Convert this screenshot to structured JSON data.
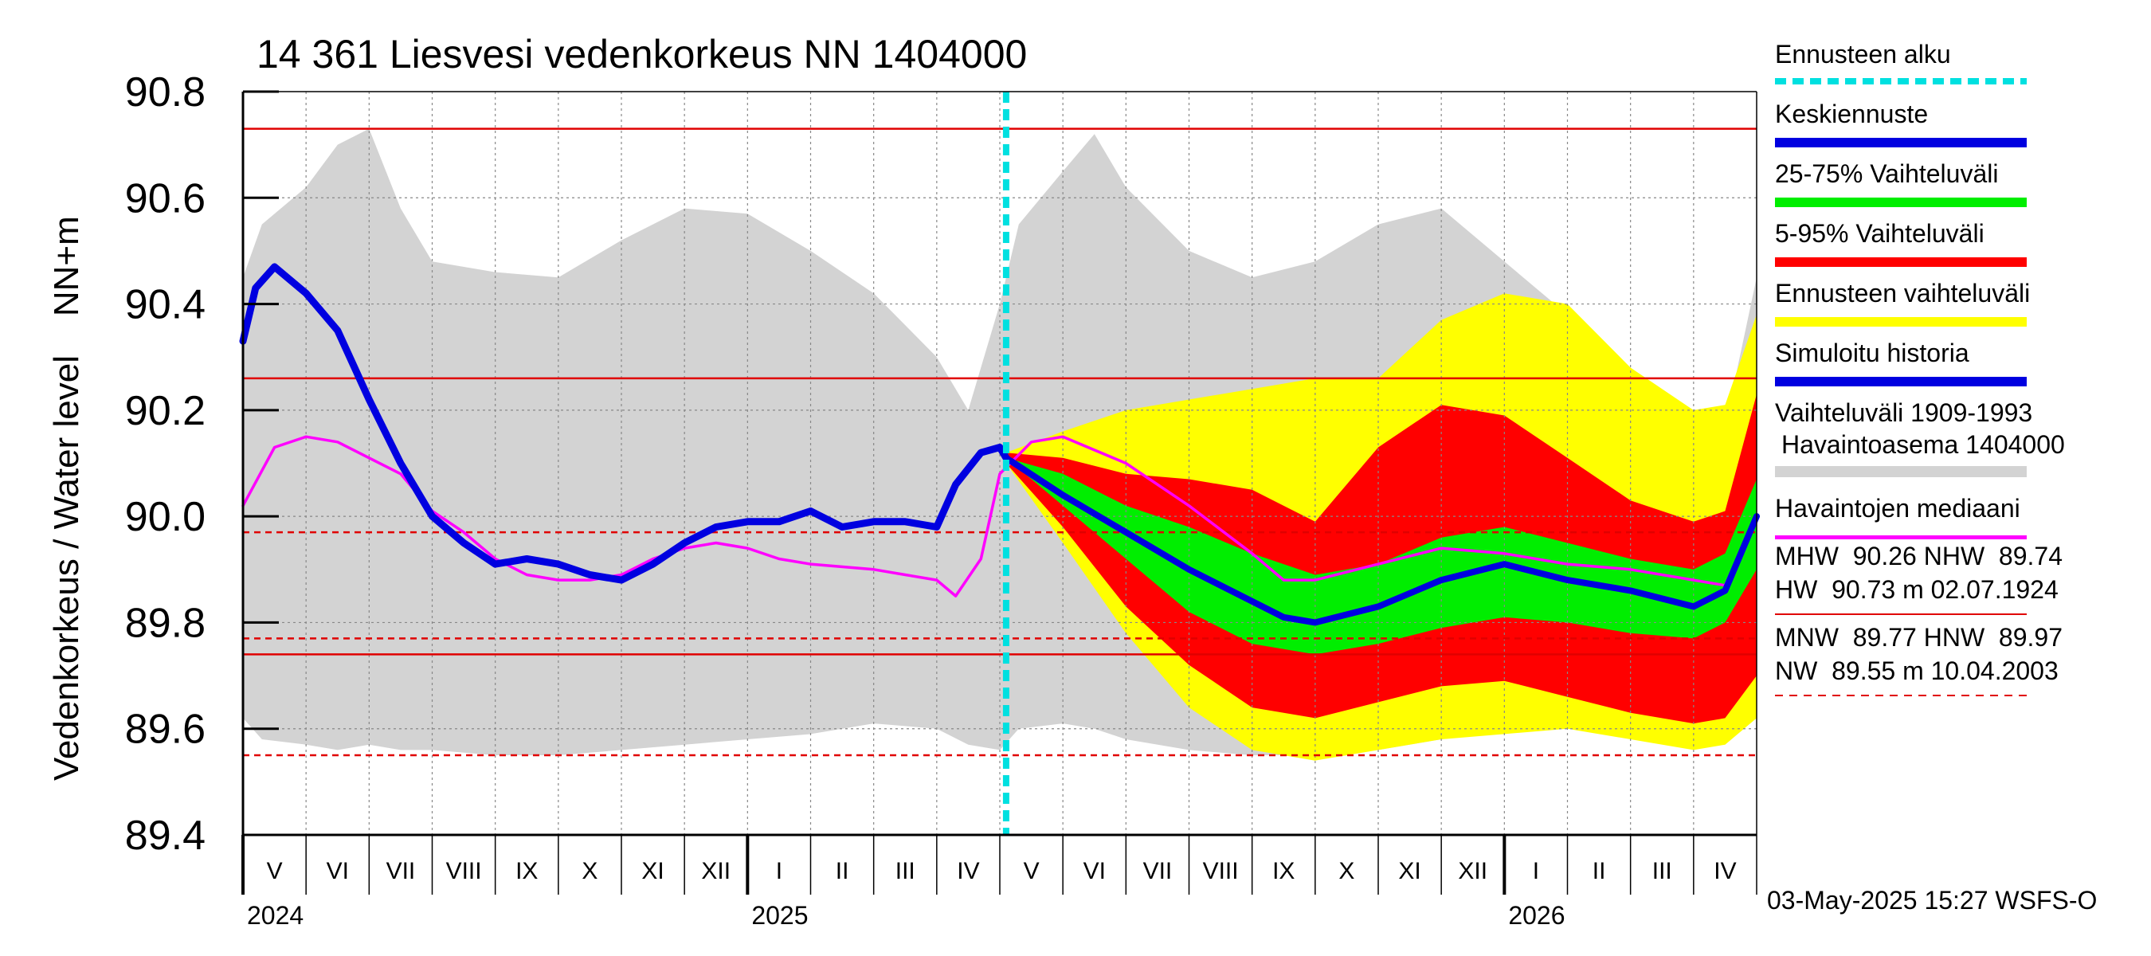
{
  "colors": {
    "history_range": "#d3d3d3",
    "forecast_range": "#ffff00",
    "band_5_95": "#ff0000",
    "band_25_75": "#00ee00",
    "mean_forecast": "#0000e0",
    "simulated_history": "#0000e0",
    "observed_median": "#ff00ff",
    "forecast_start": "#00e0e0",
    "reference_lines": "#e00000"
  },
  "chart_data": {
    "type": "line",
    "title": "14 361 Liesvesi vedenkorkeus NN 1404000",
    "ylabel": "Vedenkorkeus / Water level    NN+m",
    "ylim": [
      89.4,
      90.8
    ],
    "yticks": [
      "89.4",
      "89.6",
      "89.8",
      "90.0",
      "90.2",
      "90.4",
      "90.6",
      "90.8"
    ],
    "xlim_months": [
      0,
      24
    ],
    "month_labels": [
      "V",
      "VI",
      "VII",
      "VIII",
      "IX",
      "X",
      "XI",
      "XII",
      "I",
      "II",
      "III",
      "IV",
      "V",
      "VI",
      "VII",
      "VIII",
      "IX",
      "X",
      "XI",
      "XII",
      "I",
      "II",
      "III",
      "IV"
    ],
    "year_labels": [
      {
        "label": "2024",
        "month": 0
      },
      {
        "label": "2025",
        "month": 8
      },
      {
        "label": "2026",
        "month": 20
      }
    ],
    "forecast_start_month": 12.1,
    "reference_lines": [
      {
        "name": "HW",
        "value": 90.73,
        "style": "solid"
      },
      {
        "name": "MHW",
        "value": 90.26,
        "style": "solid"
      },
      {
        "name": "HNW",
        "value": 89.97,
        "style": "dashed"
      },
      {
        "name": "MNW",
        "value": 89.77,
        "style": "dashed"
      },
      {
        "name": "NHW",
        "value": 89.74,
        "style": "solid"
      },
      {
        "name": "NW",
        "value": 89.55,
        "style": "dashed"
      }
    ],
    "series": [
      {
        "name": "Vaihteluväli 1909-1993 Havaintoasema 1404000",
        "kind": "band",
        "x": [
          0,
          0.3,
          1,
          1.5,
          2,
          2.5,
          3,
          4,
          5,
          6,
          7,
          8,
          9,
          10,
          11,
          11.5,
          12,
          12.3,
          13,
          13.5,
          14,
          15,
          16,
          17,
          18,
          19,
          20,
          21,
          22,
          23,
          23.5,
          24
        ],
        "low": [
          89.62,
          89.58,
          89.57,
          89.56,
          89.57,
          89.56,
          89.56,
          89.55,
          89.55,
          89.56,
          89.57,
          89.58,
          89.59,
          89.61,
          89.6,
          89.57,
          89.56,
          89.6,
          89.61,
          89.6,
          89.58,
          89.56,
          89.55,
          89.55,
          89.56,
          89.58,
          89.6,
          89.61,
          89.61,
          89.6,
          89.6,
          89.64
        ],
        "high": [
          90.45,
          90.55,
          90.62,
          90.7,
          90.73,
          90.58,
          90.48,
          90.46,
          90.45,
          90.52,
          90.58,
          90.57,
          90.5,
          90.42,
          90.3,
          90.2,
          90.4,
          90.55,
          90.65,
          90.72,
          90.62,
          90.5,
          90.45,
          90.48,
          90.55,
          90.58,
          90.48,
          90.38,
          90.26,
          90.2,
          90.17,
          90.45
        ]
      },
      {
        "name": "Ennusteen vaihteluväli",
        "kind": "band",
        "x": [
          12.1,
          13,
          14,
          15,
          16,
          17,
          18,
          19,
          20,
          21,
          22,
          23,
          23.5,
          24
        ],
        "low": [
          90.1,
          89.95,
          89.78,
          89.64,
          89.56,
          89.54,
          89.56,
          89.58,
          89.59,
          89.6,
          89.58,
          89.56,
          89.57,
          89.62
        ],
        "high": [
          90.12,
          90.16,
          90.2,
          90.22,
          90.24,
          90.26,
          90.26,
          90.37,
          90.42,
          90.4,
          90.28,
          90.2,
          90.21,
          90.38
        ]
      },
      {
        "name": "5-95% Vaihteluväli",
        "kind": "band",
        "x": [
          12.1,
          13,
          14,
          15,
          16,
          17,
          18,
          19,
          20,
          21,
          22,
          23,
          23.5,
          24
        ],
        "low": [
          90.1,
          89.98,
          89.83,
          89.72,
          89.64,
          89.62,
          89.65,
          89.68,
          89.69,
          89.66,
          89.63,
          89.61,
          89.62,
          89.7
        ],
        "high": [
          90.12,
          90.11,
          90.08,
          90.07,
          90.05,
          89.99,
          90.13,
          90.21,
          90.19,
          90.11,
          90.03,
          89.99,
          90.01,
          90.23
        ]
      },
      {
        "name": "25-75% Vaihteluväli",
        "kind": "band",
        "x": [
          12.1,
          13,
          14,
          15,
          16,
          17,
          18,
          19,
          20,
          21,
          22,
          23,
          23.5,
          24
        ],
        "low": [
          90.11,
          90.02,
          89.92,
          89.82,
          89.76,
          89.74,
          89.76,
          89.79,
          89.81,
          89.8,
          89.78,
          89.77,
          89.8,
          89.9
        ],
        "high": [
          90.11,
          90.08,
          90.02,
          89.98,
          89.93,
          89.89,
          89.91,
          89.96,
          89.98,
          89.95,
          89.92,
          89.9,
          89.93,
          90.07
        ]
      },
      {
        "name": "Keskiennuste",
        "kind": "line",
        "x": [
          12.1,
          13,
          14,
          15,
          16,
          16.5,
          17,
          18,
          19,
          20,
          21,
          22,
          23,
          23.5,
          24
        ],
        "y": [
          90.11,
          90.04,
          89.97,
          89.9,
          89.84,
          89.81,
          89.8,
          89.83,
          89.88,
          89.91,
          89.88,
          89.86,
          89.83,
          89.86,
          90.0
        ]
      },
      {
        "name": "Simuloitu historia",
        "kind": "line",
        "x": [
          0,
          0.2,
          0.5,
          1,
          1.5,
          2,
          2.5,
          3,
          3.5,
          4,
          4.5,
          5,
          5.5,
          6,
          6.5,
          7,
          7.5,
          8,
          8.5,
          9,
          9.5,
          10,
          10.5,
          11,
          11.3,
          11.7,
          12,
          12.1
        ],
        "y": [
          90.33,
          90.43,
          90.47,
          90.42,
          90.35,
          90.22,
          90.1,
          90.0,
          89.95,
          89.91,
          89.92,
          89.91,
          89.89,
          89.88,
          89.91,
          89.95,
          89.98,
          89.99,
          89.99,
          90.01,
          89.98,
          89.99,
          89.99,
          89.98,
          90.06,
          90.12,
          90.13,
          90.11
        ]
      },
      {
        "name": "Havaintojen mediaani",
        "kind": "line",
        "x": [
          0,
          0.5,
          1,
          1.5,
          2,
          2.5,
          3,
          3.5,
          4,
          4.5,
          5,
          5.5,
          6,
          6.5,
          7,
          7.5,
          8,
          8.5,
          9,
          10,
          10.5,
          11,
          11.3,
          11.7,
          12,
          12.5,
          13,
          14,
          15,
          16,
          16.5,
          17,
          18,
          19,
          20,
          21,
          22,
          23,
          23.5,
          24
        ],
        "y": [
          90.02,
          90.13,
          90.15,
          90.14,
          90.11,
          90.08,
          90.01,
          89.97,
          89.92,
          89.89,
          89.88,
          89.88,
          89.89,
          89.92,
          89.94,
          89.95,
          89.94,
          89.92,
          89.91,
          89.9,
          89.89,
          89.88,
          89.85,
          89.92,
          90.08,
          90.14,
          90.15,
          90.1,
          90.02,
          89.93,
          89.88,
          89.88,
          89.91,
          89.94,
          89.93,
          89.91,
          89.9,
          89.88,
          89.87,
          90.0
        ]
      }
    ]
  },
  "legend": {
    "forecast_start": "Ennusteen alku",
    "mean_forecast": "Keskiennuste",
    "band_25_75": "25-75% Vaihteluväli",
    "band_5_95": "5-95% Vaihteluväli",
    "forecast_range": "Ennusteen vaihteluväli",
    "simulated_history": "Simuloitu historia",
    "history_range_line1": "Vaihteluväli 1909-1993",
    "history_range_line2": "Havaintoasema 1404000",
    "observed_median": "Havaintojen mediaani"
  },
  "stats": {
    "row1": "MHW  90.26 NHW  89.74",
    "row2": "HW  90.73 m 02.07.1924",
    "row3": "MNW  89.77 HNW  89.97",
    "row4": "NW  89.55 m 10.04.2003"
  },
  "footer": "03-May-2025 15:27 WSFS-O"
}
